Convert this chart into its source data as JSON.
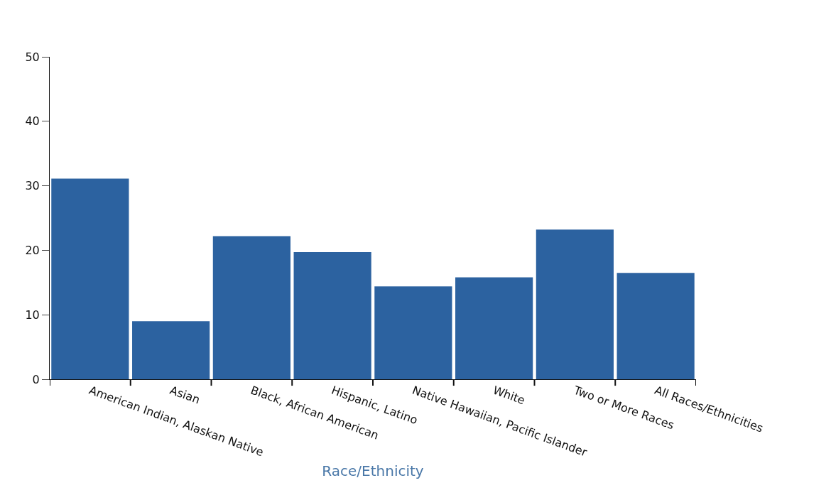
{
  "chart_data": {
    "type": "bar",
    "xlabel": "Race/Ethnicity",
    "categories": [
      "American Indian, Alaskan Native",
      "Asian",
      "Black, African American",
      "Hispanic, Latino",
      "Native Hawaiian, Pacific Islander",
      "White",
      "Two or More Races",
      "All Races/Ethnicities"
    ],
    "values": [
      31.1,
      9.0,
      22.2,
      19.7,
      14.4,
      15.8,
      23.2,
      16.5
    ],
    "color": "#2c62a0",
    "ylim": [
      0,
      50
    ],
    "yticks": [
      0,
      10,
      20,
      30,
      40,
      50
    ],
    "legend": false
  }
}
